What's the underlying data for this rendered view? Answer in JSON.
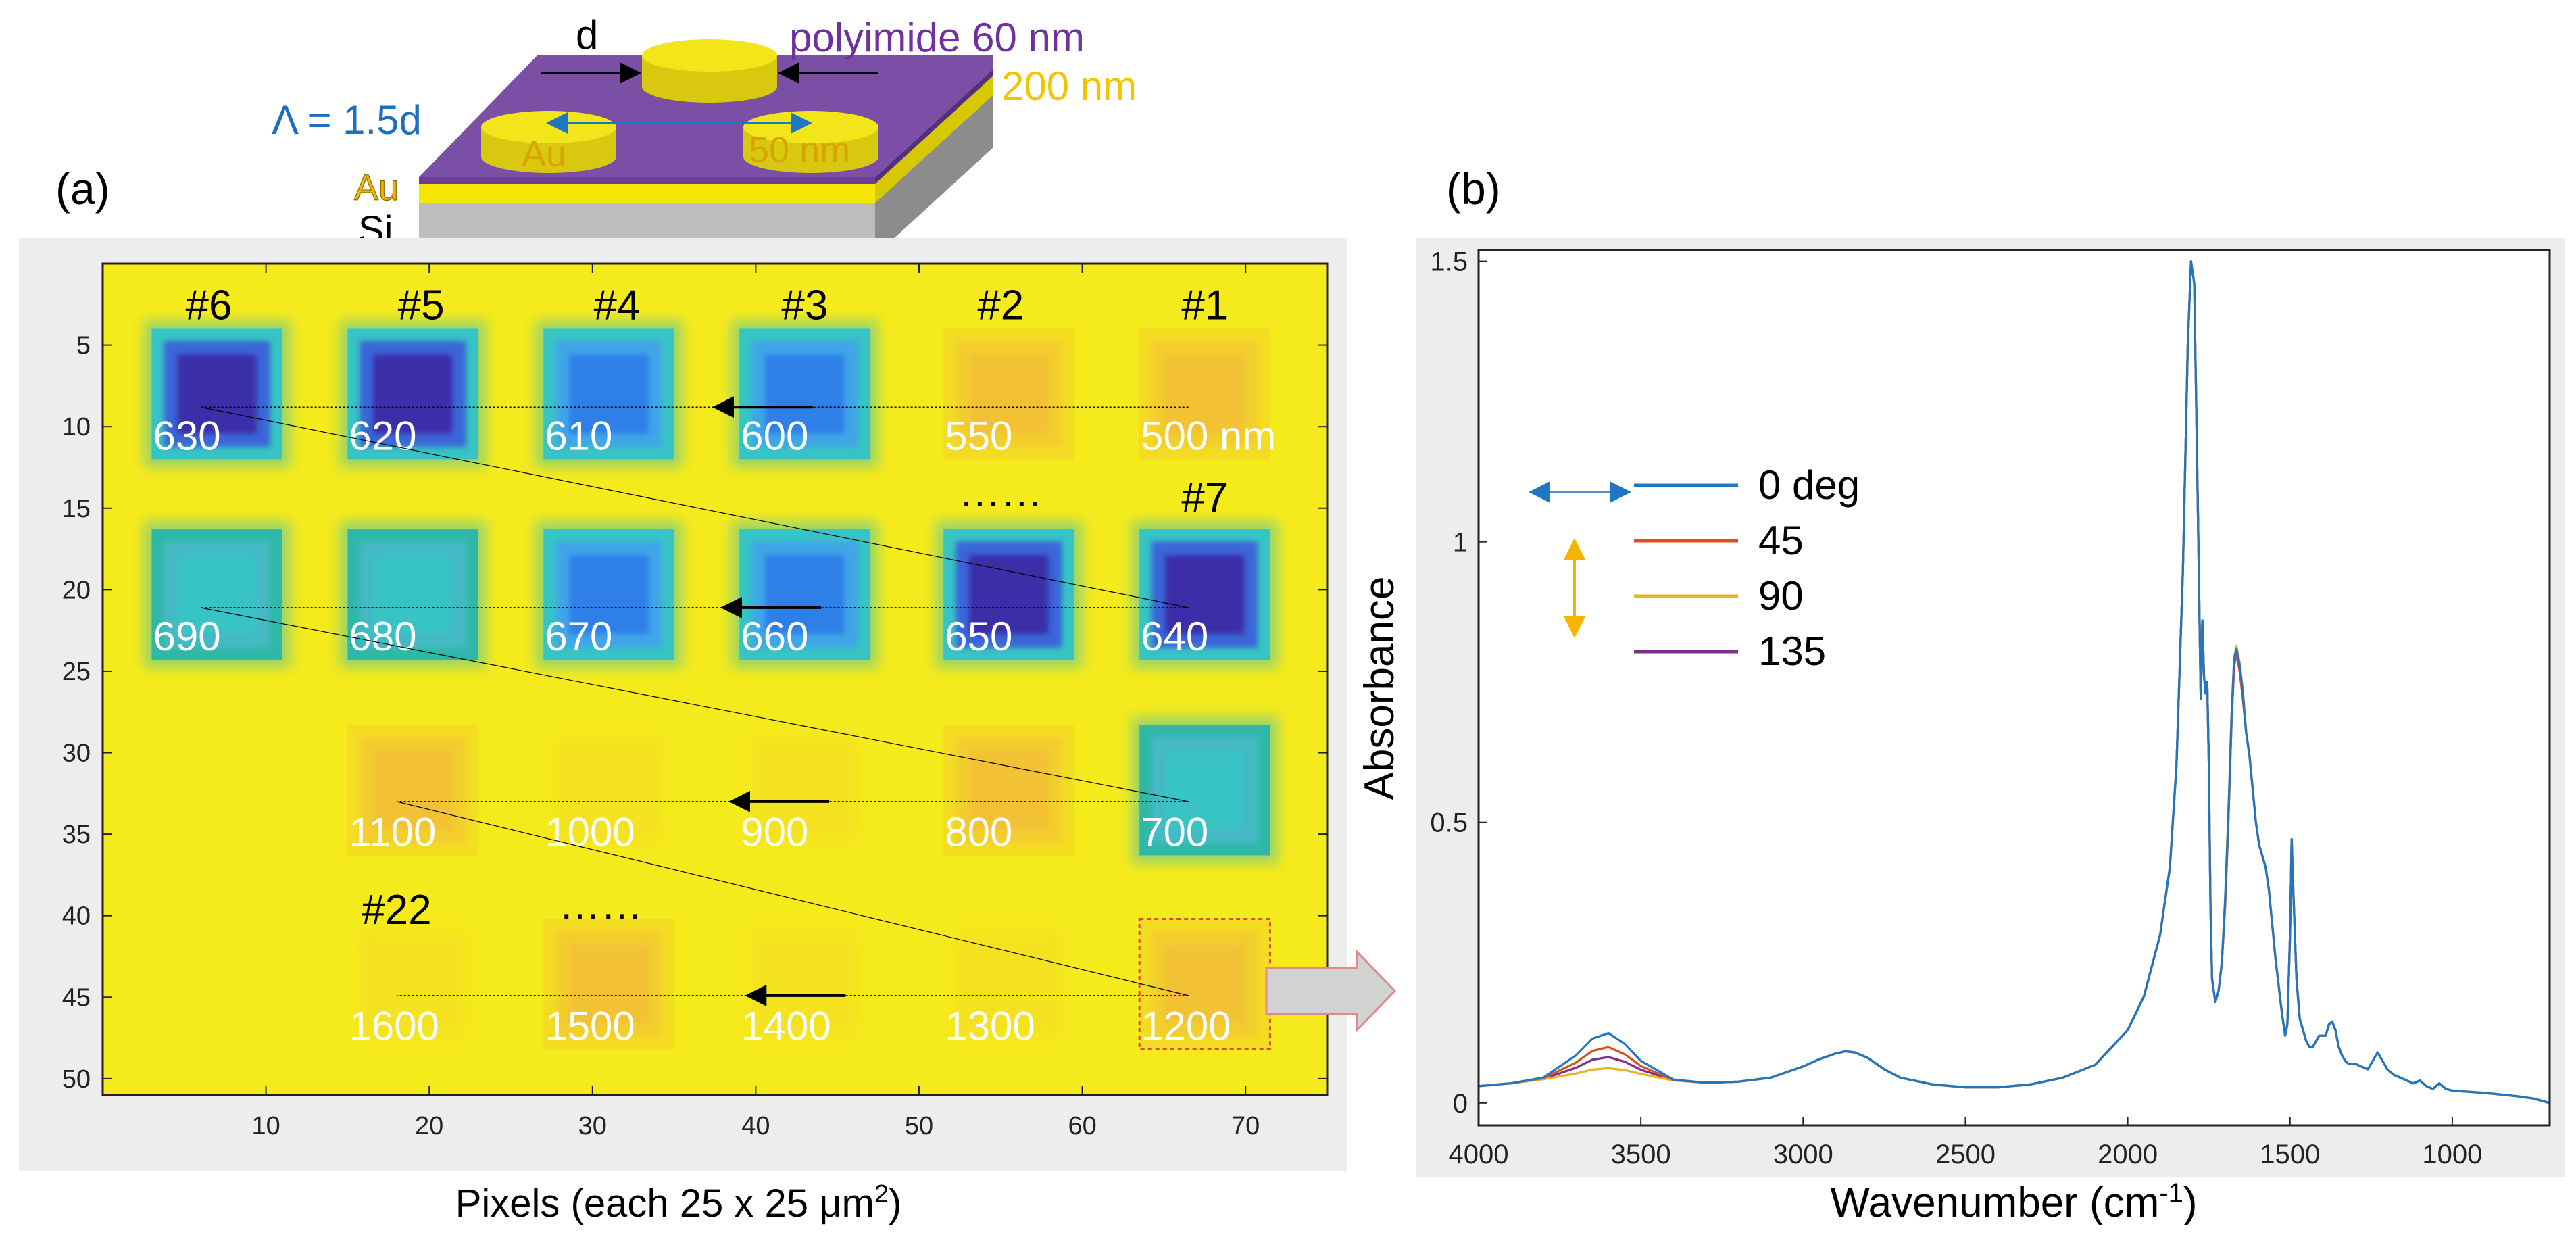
{
  "figure": {
    "panel_a_label": "(a)",
    "panel_b_label": "(b)",
    "schematic": {
      "d_label": "d",
      "polyimide_label": "polyimide 60 nm",
      "gold_thickness_label": "200 nm",
      "period_label": "Λ = 1.5d",
      "au_disk_label": "Au",
      "disk_height_label": "50 nm",
      "au_film_label": "Au",
      "si_label": "Si",
      "colors": {
        "polyimide": "#7b4fa6",
        "gold": "#f5e600",
        "si": "#bdbdbd",
        "disk": "#f2e61a"
      }
    }
  },
  "chart_data": [
    {
      "type": "heatmap",
      "panel": "(a)",
      "xlabel": "Pixels (each 25 x 25 μm",
      "xlabel_sup": "2",
      "xlabel_end": ")",
      "ylabel": "",
      "xlim": [
        0,
        75
      ],
      "ylim": [
        51,
        0
      ],
      "x_ticks": [
        10,
        20,
        30,
        40,
        50,
        60,
        70
      ],
      "y_ticks": [
        5,
        10,
        15,
        20,
        25,
        30,
        35,
        40,
        45,
        50
      ],
      "colors": {
        "background": "#f5ea1c",
        "strong": "#3a2fa8",
        "medium": "#2f7fe8",
        "weak": "#37c4c4",
        "faint": "#f2b83a"
      },
      "grid_labels": [
        {
          "text": "#6",
          "x": 6.5,
          "y": 2.5
        },
        {
          "text": "#5",
          "x": 19.5,
          "y": 2.5
        },
        {
          "text": "#4",
          "x": 31.5,
          "y": 2.5
        },
        {
          "text": "#3",
          "x": 43,
          "y": 2.5
        },
        {
          "text": "#2",
          "x": 55,
          "y": 2.5
        },
        {
          "text": "#1",
          "x": 67.5,
          "y": 2.5
        },
        {
          "text": "#7",
          "x": 67.5,
          "y": 14.3
        },
        {
          "text": "#22",
          "x": 18,
          "y": 39.6
        }
      ],
      "ellipses": [
        {
          "text": "……",
          "x": 55,
          "y": 14.3
        },
        {
          "text": "……",
          "x": 30.5,
          "y": 39.6
        }
      ],
      "squares": [
        {
          "label": "500 nm",
          "x": 67.5,
          "y": 8,
          "level": "faint"
        },
        {
          "label": "550",
          "x": 55.5,
          "y": 8,
          "level": "faint"
        },
        {
          "label": "600",
          "x": 43,
          "y": 8,
          "level": "medium"
        },
        {
          "label": "610",
          "x": 31,
          "y": 8,
          "level": "medium"
        },
        {
          "label": "620",
          "x": 19,
          "y": 8,
          "level": "strong"
        },
        {
          "label": "630",
          "x": 7,
          "y": 8,
          "level": "strong"
        },
        {
          "label": "640",
          "x": 67.5,
          "y": 20.3,
          "level": "strong"
        },
        {
          "label": "650",
          "x": 55.5,
          "y": 20.3,
          "level": "strong"
        },
        {
          "label": "660",
          "x": 43,
          "y": 20.3,
          "level": "medium"
        },
        {
          "label": "670",
          "x": 31,
          "y": 20.3,
          "level": "medium"
        },
        {
          "label": "680",
          "x": 19,
          "y": 20.3,
          "level": "weak"
        },
        {
          "label": "690",
          "x": 7,
          "y": 20.3,
          "level": "weak"
        },
        {
          "label": "700",
          "x": 67.5,
          "y": 32.3,
          "level": "weak"
        },
        {
          "label": "800",
          "x": 55.5,
          "y": 32.3,
          "level": "faint"
        },
        {
          "label": "900",
          "x": 43,
          "y": 32.3,
          "level": "none"
        },
        {
          "label": "1000",
          "x": 31,
          "y": 32.3,
          "level": "none"
        },
        {
          "label": "1100",
          "x": 19,
          "y": 32.3,
          "level": "faint"
        },
        {
          "label": "1200",
          "x": 67.5,
          "y": 44.2,
          "level": "faint"
        },
        {
          "label": "1300",
          "x": 55.5,
          "y": 44.2,
          "level": "none"
        },
        {
          "label": "1400",
          "x": 43,
          "y": 44.2,
          "level": "none"
        },
        {
          "label": "1500",
          "x": 31,
          "y": 44.2,
          "level": "faint"
        },
        {
          "label": "1600",
          "x": 19,
          "y": 44.2,
          "level": "none"
        }
      ],
      "scan_rows": [
        {
          "y": 8.8,
          "x_start": 66.5,
          "x_end": 6.0,
          "arrow_x": 40.5
        },
        {
          "y": 21.1,
          "x_start": 66.5,
          "x_end": 6.0,
          "arrow_x": 41
        },
        {
          "y": 33.0,
          "x_start": 66.5,
          "x_end": 18.0,
          "arrow_x": 41.5
        },
        {
          "y": 44.9,
          "x_start": 66.5,
          "x_end": 18.0,
          "arrow_x": 42.5
        }
      ],
      "highlight_square": {
        "label": "1200",
        "x": 67.5,
        "y": 44.2
      }
    },
    {
      "type": "line",
      "panel": "(b)",
      "xlabel": "Wavenumber (cm",
      "xlabel_sup": "-1",
      "xlabel_end": ")",
      "ylabel": "Absorbance",
      "xlim": [
        4000,
        700
      ],
      "ylim": [
        -0.04,
        1.52
      ],
      "x_ticks": [
        4000,
        3500,
        3000,
        2500,
        2000,
        1500,
        1000
      ],
      "y_ticks": [
        0,
        0.5,
        1,
        1.5
      ],
      "y_tick_labels": [
        "0",
        "0.5",
        "1",
        "1.5"
      ],
      "legend_position": "upper-left",
      "series": [
        {
          "name": "0 deg",
          "color": "#1f77c4",
          "hump_3600": 0.125
        },
        {
          "name": "45",
          "color": "#d95319",
          "hump_3600": 0.1
        },
        {
          "name": "90",
          "color": "#edb120",
          "hump_3600": 0.062
        },
        {
          "name": "135",
          "color": "#7e2f8e",
          "hump_3600": 0.082
        }
      ],
      "x_points": [
        4000,
        3900,
        3800,
        3700,
        3650,
        3600,
        3550,
        3500,
        3400,
        3300,
        3200,
        3100,
        3000,
        2950,
        2900,
        2870,
        2840,
        2800,
        2750,
        2700,
        2600,
        2500,
        2400,
        2300,
        2200,
        2100,
        2000,
        1950,
        1900,
        1870,
        1850,
        1830,
        1815,
        1805,
        1795,
        1785,
        1775,
        1770,
        1765,
        1760,
        1755,
        1750,
        1745,
        1740,
        1730,
        1720,
        1710,
        1700,
        1690,
        1680,
        1672,
        1665,
        1655,
        1645,
        1635,
        1625,
        1615,
        1605,
        1595,
        1585,
        1575,
        1565,
        1555,
        1545,
        1535,
        1525,
        1515,
        1508,
        1500,
        1495,
        1490,
        1480,
        1470,
        1460,
        1450,
        1440,
        1430,
        1420,
        1410,
        1400,
        1390,
        1380,
        1370,
        1360,
        1350,
        1340,
        1330,
        1320,
        1300,
        1280,
        1260,
        1245,
        1230,
        1215,
        1200,
        1180,
        1160,
        1140,
        1120,
        1100,
        1080,
        1060,
        1040,
        1020,
        1000,
        950,
        900,
        850,
        800,
        750,
        700
      ],
      "base_values": [
        0.03,
        0.035,
        0.042,
        0.05,
        0.055,
        0.057,
        0.055,
        0.05,
        0.04,
        0.036,
        0.038,
        0.045,
        0.065,
        0.078,
        0.088,
        0.092,
        0.09,
        0.08,
        0.06,
        0.045,
        0.033,
        0.028,
        0.028,
        0.033,
        0.045,
        0.068,
        0.13,
        0.19,
        0.3,
        0.42,
        0.6,
        0.95,
        1.35,
        1.5,
        1.46,
        1.1,
        0.72,
        0.86,
        0.76,
        0.73,
        0.75,
        0.6,
        0.35,
        0.22,
        0.18,
        0.2,
        0.25,
        0.35,
        0.5,
        0.68,
        0.78,
        0.8,
        0.77,
        0.72,
        0.66,
        0.62,
        0.56,
        0.5,
        0.46,
        0.44,
        0.42,
        0.38,
        0.32,
        0.26,
        0.21,
        0.16,
        0.12,
        0.14,
        0.3,
        0.47,
        0.38,
        0.22,
        0.15,
        0.13,
        0.11,
        0.1,
        0.1,
        0.11,
        0.12,
        0.12,
        0.12,
        0.14,
        0.145,
        0.13,
        0.1,
        0.085,
        0.075,
        0.07,
        0.07,
        0.065,
        0.06,
        0.075,
        0.09,
        0.075,
        0.06,
        0.05,
        0.045,
        0.04,
        0.035,
        0.04,
        0.03,
        0.025,
        0.035,
        0.025,
        0.022,
        0.02,
        0.018,
        0.015,
        0.012,
        0.008,
        0.0
      ]
    }
  ]
}
